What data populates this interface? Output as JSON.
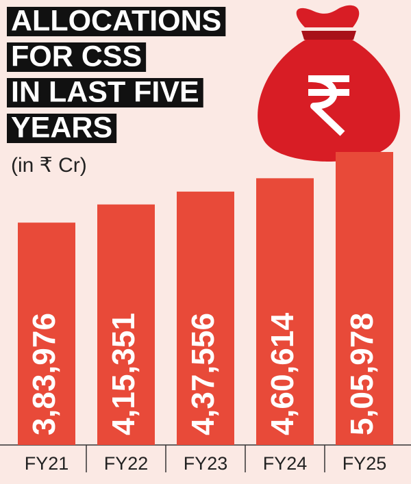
{
  "chart_data": {
    "type": "bar",
    "title": [
      "ALLOCATIONS",
      "FOR CSS",
      "IN LAST FIVE",
      "YEARS"
    ],
    "subtitle": "(in ₹ Cr)",
    "categories": [
      "FY21",
      "FY22",
      "FY23",
      "FY24",
      "FY25"
    ],
    "values": [
      383976,
      415351,
      437556,
      460614,
      505978
    ],
    "value_labels": [
      "3,83,976",
      "4,15,351",
      "4,37,556",
      "4,60,614",
      "5,05,978"
    ],
    "color": "#e84a39"
  }
}
